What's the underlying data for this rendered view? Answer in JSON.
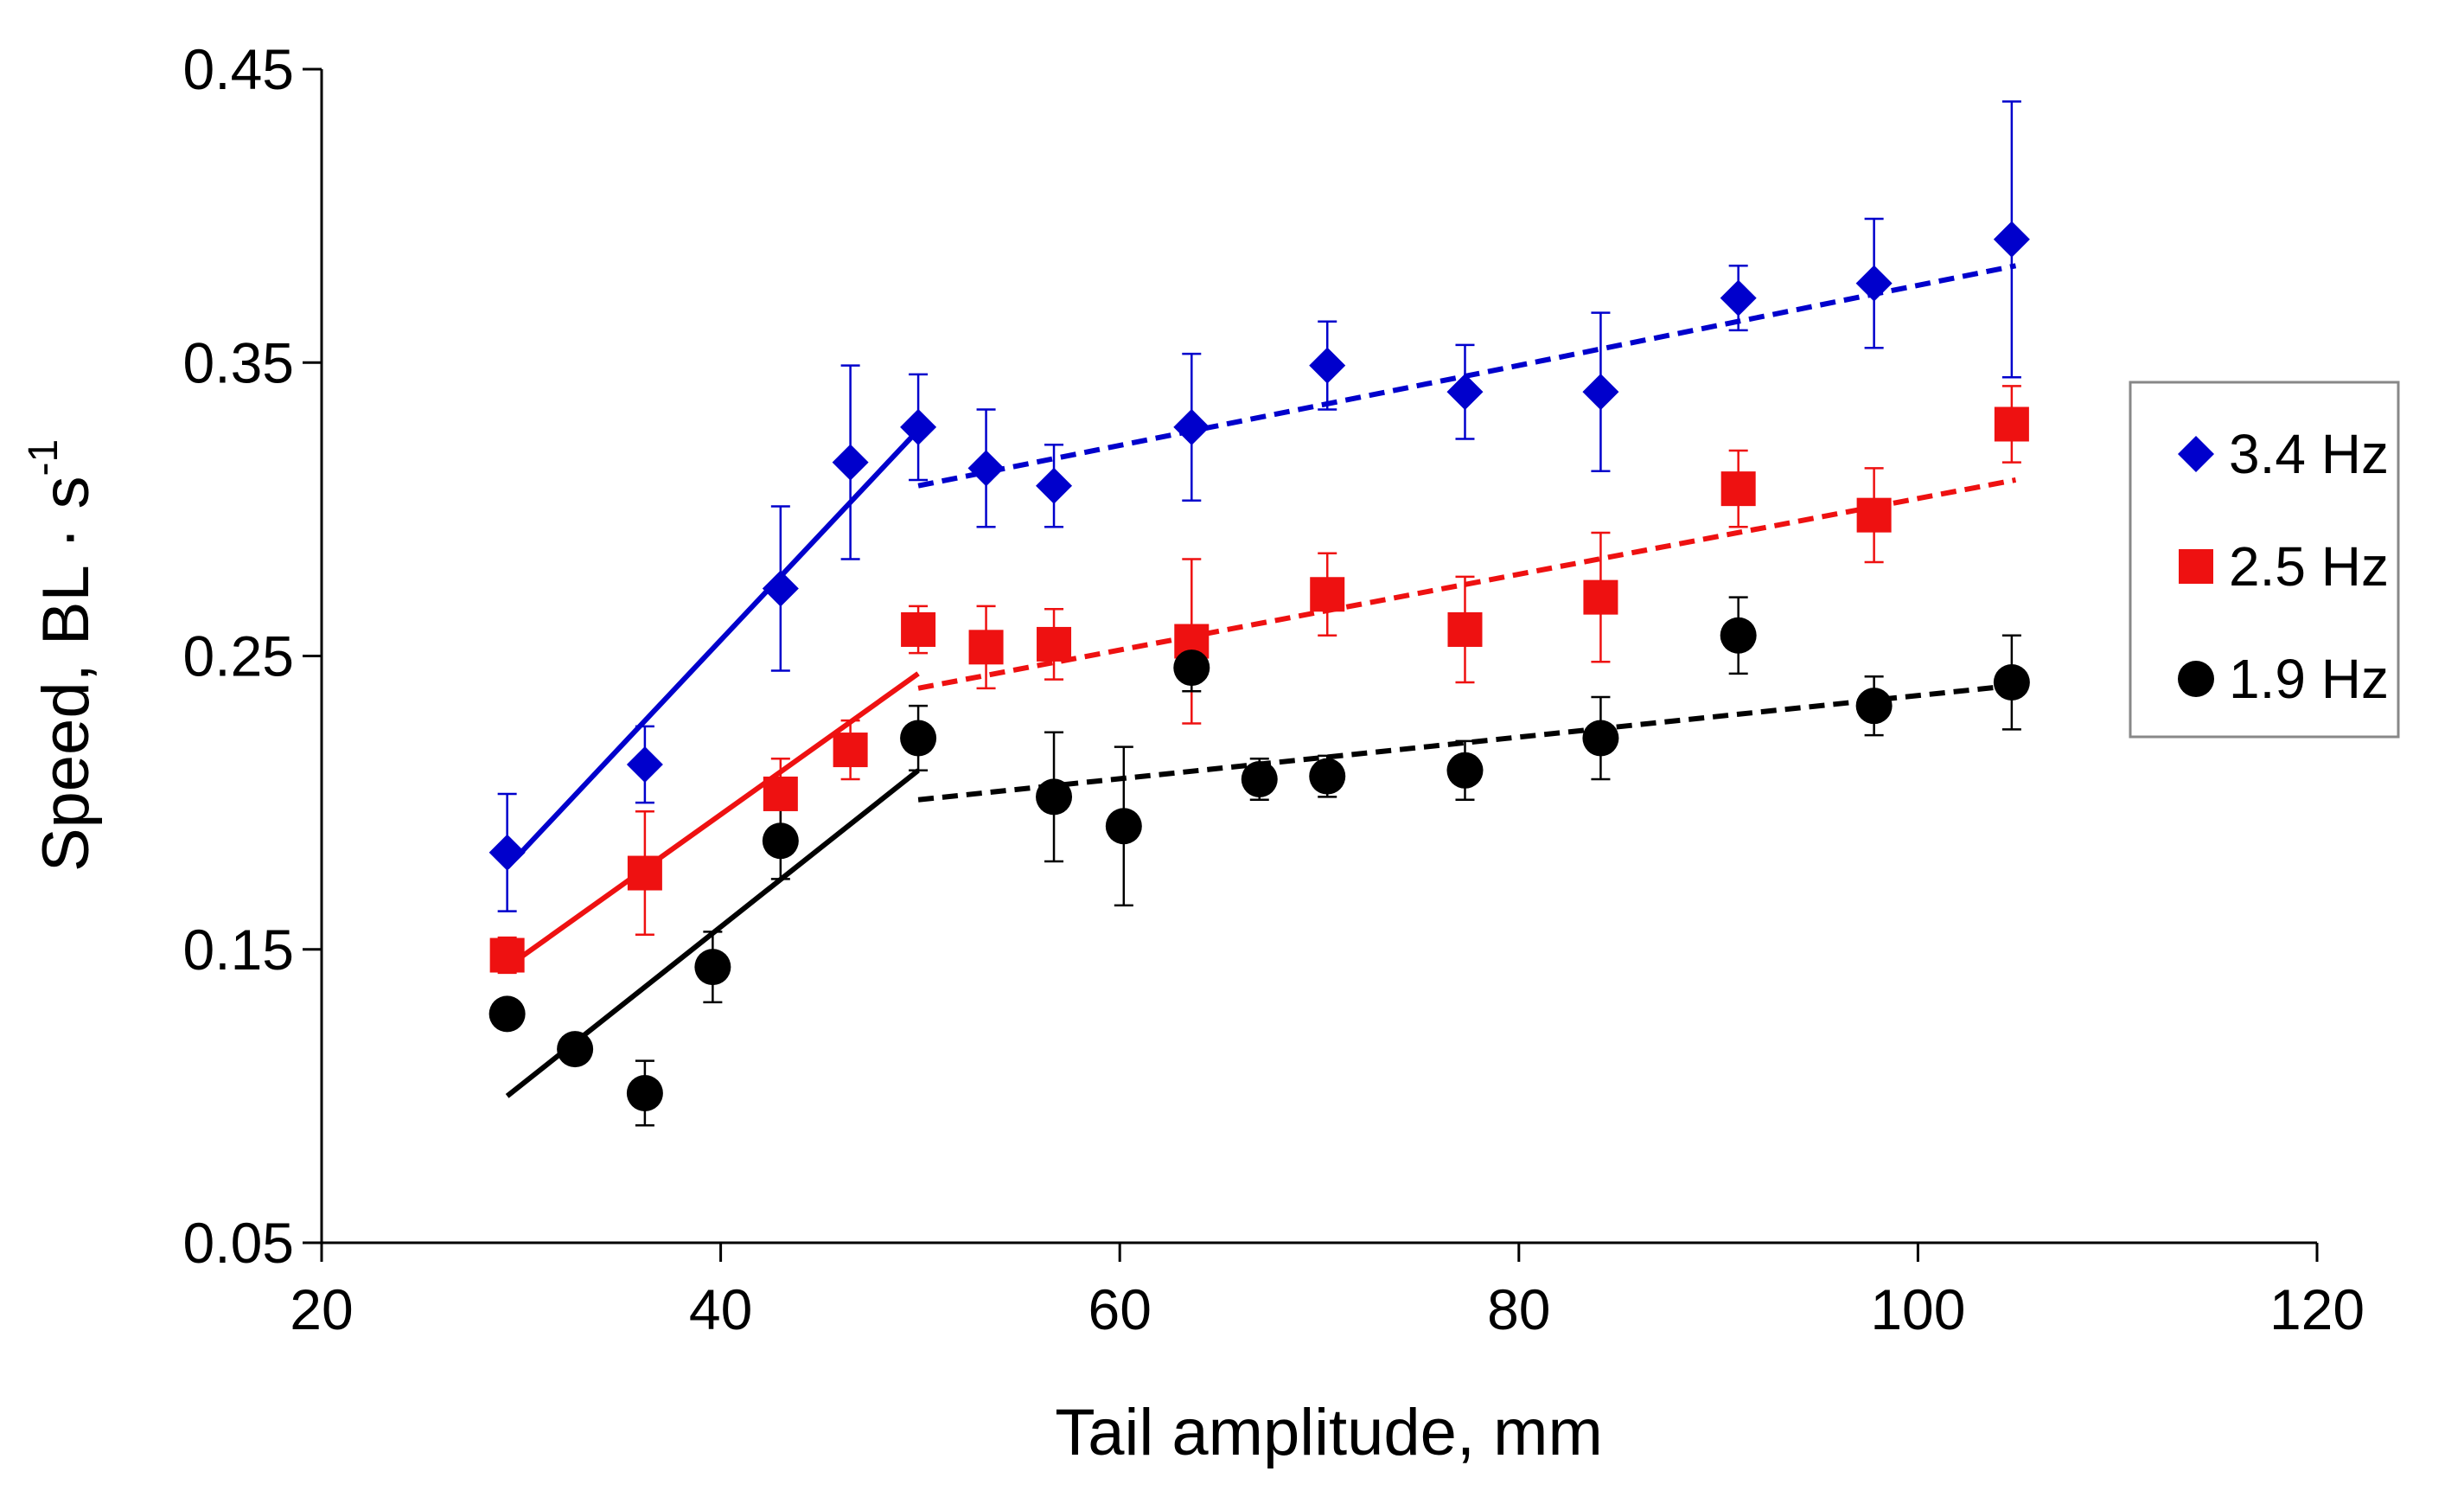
{
  "chart_data": {
    "type": "scatter",
    "xlabel": "Tail amplitude, mm",
    "ylabel": "Speed, BL · s",
    "ylabel_superscript": "-1",
    "xlim": [
      20,
      120
    ],
    "ylim": [
      0.05,
      0.45
    ],
    "xticks": [
      20,
      40,
      60,
      80,
      100,
      120
    ],
    "yticks": [
      0.05,
      0.15,
      0.25,
      0.35,
      0.45
    ],
    "xtick_labels": [
      "20",
      "40",
      "60",
      "80",
      "100",
      "120"
    ],
    "ytick_labels": [
      "0.05",
      "0.15",
      "0.25",
      "0.35",
      "0.45"
    ],
    "grid": false,
    "legend_position": "right",
    "series": [
      {
        "name": "3.4 Hz",
        "color": "#0000cc",
        "marker": "diamond",
        "points": [
          {
            "x": 29.3,
            "y": 0.183,
            "err": 0.02
          },
          {
            "x": 36.2,
            "y": 0.213,
            "err": 0.013
          },
          {
            "x": 43.0,
            "y": 0.273,
            "err": 0.028
          },
          {
            "x": 46.5,
            "y": 0.316,
            "err": 0.033
          },
          {
            "x": 49.9,
            "y": 0.328,
            "err": 0.018
          },
          {
            "x": 53.3,
            "y": 0.314,
            "err": 0.02
          },
          {
            "x": 56.7,
            "y": 0.308,
            "err": 0.014
          },
          {
            "x": 63.6,
            "y": 0.328,
            "err": 0.025
          },
          {
            "x": 70.4,
            "y": 0.349,
            "err": 0.015
          },
          {
            "x": 77.3,
            "y": 0.34,
            "err": 0.016
          },
          {
            "x": 84.1,
            "y": 0.34,
            "err": 0.027
          },
          {
            "x": 91.0,
            "y": 0.372,
            "err": 0.011
          },
          {
            "x": 97.8,
            "y": 0.377,
            "err": 0.022
          },
          {
            "x": 104.7,
            "y": 0.392,
            "err": 0.047
          }
        ],
        "fits": [
          {
            "style": "solid",
            "x": [
              29.3,
              49.9
            ],
            "y": [
              0.178,
              0.327
            ]
          },
          {
            "style": "dashed",
            "x": [
              49.9,
              104.9
            ],
            "y": [
              0.308,
              0.383
            ]
          }
        ]
      },
      {
        "name": "2.5 Hz",
        "color": "#ee1111",
        "marker": "square",
        "points": [
          {
            "x": 29.3,
            "y": 0.148,
            "err": 0.006
          },
          {
            "x": 36.2,
            "y": 0.176,
            "err": 0.021
          },
          {
            "x": 43.0,
            "y": 0.203,
            "err": 0.012
          },
          {
            "x": 46.5,
            "y": 0.218,
            "err": 0.01
          },
          {
            "x": 49.9,
            "y": 0.259,
            "err": 0.008
          },
          {
            "x": 53.3,
            "y": 0.253,
            "err": 0.014
          },
          {
            "x": 56.7,
            "y": 0.254,
            "err": 0.012
          },
          {
            "x": 63.6,
            "y": 0.255,
            "err": 0.028
          },
          {
            "x": 70.4,
            "y": 0.271,
            "err": 0.014
          },
          {
            "x": 77.3,
            "y": 0.259,
            "err": 0.018
          },
          {
            "x": 84.1,
            "y": 0.27,
            "err": 0.022
          },
          {
            "x": 91.0,
            "y": 0.307,
            "err": 0.013
          },
          {
            "x": 97.8,
            "y": 0.298,
            "err": 0.016
          },
          {
            "x": 104.7,
            "y": 0.329,
            "err": 0.013
          }
        ],
        "fits": [
          {
            "style": "solid",
            "x": [
              29.3,
              49.9
            ],
            "y": [
              0.144,
              0.244
            ]
          },
          {
            "style": "dashed",
            "x": [
              49.9,
              104.9
            ],
            "y": [
              0.239,
              0.31
            ]
          }
        ]
      },
      {
        "name": "1.9 Hz",
        "color": "#000000",
        "marker": "circle",
        "points": [
          {
            "x": 29.3,
            "y": 0.128,
            "err": 0
          },
          {
            "x": 32.7,
            "y": 0.116,
            "err": 0
          },
          {
            "x": 36.2,
            "y": 0.101,
            "err": 0.011
          },
          {
            "x": 39.6,
            "y": 0.144,
            "err": 0.012
          },
          {
            "x": 43.0,
            "y": 0.187,
            "err": 0.013
          },
          {
            "x": 49.9,
            "y": 0.222,
            "err": 0.011
          },
          {
            "x": 56.7,
            "y": 0.202,
            "err": 0.022
          },
          {
            "x": 60.2,
            "y": 0.192,
            "err": 0.027
          },
          {
            "x": 63.6,
            "y": 0.246,
            "err": 0.008
          },
          {
            "x": 67.0,
            "y": 0.208,
            "err": 0.007
          },
          {
            "x": 70.4,
            "y": 0.209,
            "err": 0.007
          },
          {
            "x": 77.3,
            "y": 0.211,
            "err": 0.01
          },
          {
            "x": 84.1,
            "y": 0.222,
            "err": 0.014
          },
          {
            "x": 91.0,
            "y": 0.257,
            "err": 0.013
          },
          {
            "x": 97.8,
            "y": 0.233,
            "err": 0.01
          },
          {
            "x": 104.7,
            "y": 0.241,
            "err": 0.016
          }
        ],
        "fits": [
          {
            "style": "solid",
            "x": [
              29.3,
              49.9
            ],
            "y": [
              0.1,
              0.211
            ]
          },
          {
            "style": "dashed",
            "x": [
              49.9,
              104.9
            ],
            "y": [
              0.201,
              0.24
            ]
          }
        ]
      }
    ]
  }
}
